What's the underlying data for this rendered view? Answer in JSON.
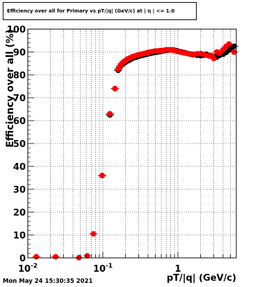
{
  "timestamp": "Mon May 24 15:30:35 2021",
  "chart_data": {
    "type": "scatter",
    "title": "Efficiency over all for Primary vs pT/|q| (GeV/c) at | η | <= 1.0",
    "xlabel": "pT/|q| (GeV/c)",
    "ylabel": "Efficiency over all (%)",
    "x_scale": "log",
    "xlim": [
      0.01,
      6.0
    ],
    "ylim": [
      0,
      100
    ],
    "x_ticks": [
      {
        "value": 0.01,
        "label": "10",
        "exp": "-2"
      },
      {
        "value": 0.1,
        "label": "10",
        "exp": "-1"
      },
      {
        "value": 1,
        "label": "1",
        "exp": ""
      }
    ],
    "y_ticks": [
      {
        "value": 0,
        "label": "0"
      },
      {
        "value": 10,
        "label": "10"
      },
      {
        "value": 20,
        "label": "20"
      },
      {
        "value": 30,
        "label": "30"
      },
      {
        "value": 40,
        "label": "40"
      },
      {
        "value": 50,
        "label": "50"
      },
      {
        "value": 60,
        "label": "60"
      },
      {
        "value": 70,
        "label": "70"
      },
      {
        "value": 80,
        "label": "80"
      },
      {
        "value": 90,
        "label": "90"
      },
      {
        "value": 100,
        "label": "100"
      }
    ],
    "grid": true,
    "series": [
      {
        "color": "#000000",
        "points": [
          [
            0.098,
            36
          ],
          [
            0.124,
            62.5
          ],
          [
            0.145,
            74
          ],
          [
            0.16,
            82
          ],
          [
            0.17,
            83.5
          ],
          [
            0.18,
            84.5
          ],
          [
            0.19,
            85
          ],
          [
            0.2,
            85.5
          ],
          [
            0.21,
            86
          ],
          [
            0.22,
            86.3
          ],
          [
            0.23,
            86.6
          ],
          [
            0.24,
            87
          ],
          [
            0.25,
            87.3
          ],
          [
            0.26,
            87.5
          ],
          [
            0.28,
            87.8
          ],
          [
            0.3,
            88.1
          ],
          [
            0.32,
            88.4
          ],
          [
            0.34,
            88.6
          ],
          [
            0.36,
            88.8
          ],
          [
            0.38,
            89
          ],
          [
            0.4,
            89.2
          ],
          [
            0.43,
            89.4
          ],
          [
            0.46,
            89.6
          ],
          [
            0.5,
            89.8
          ],
          [
            0.54,
            90
          ],
          [
            0.58,
            90.2
          ],
          [
            0.62,
            90.4
          ],
          [
            0.66,
            90.6
          ],
          [
            0.7,
            90.7
          ],
          [
            0.75,
            90.8
          ],
          [
            0.8,
            90.9
          ],
          [
            0.85,
            90.9
          ],
          [
            0.9,
            90.8
          ],
          [
            0.95,
            90.6
          ],
          [
            1.0,
            90.4
          ],
          [
            1.1,
            90.1
          ],
          [
            1.2,
            89.8
          ],
          [
            1.3,
            89.5
          ],
          [
            1.4,
            89.2
          ],
          [
            1.5,
            89
          ],
          [
            1.6,
            88.8
          ],
          [
            1.8,
            88.6
          ],
          [
            2.0,
            88.4
          ],
          [
            2.2,
            88.6
          ],
          [
            2.4,
            89
          ],
          [
            2.6,
            88.5
          ],
          [
            2.8,
            88.2
          ],
          [
            3.0,
            88
          ],
          [
            3.3,
            87.8
          ],
          [
            3.6,
            88.5
          ],
          [
            4.0,
            89
          ],
          [
            4.4,
            89.8
          ],
          [
            4.8,
            91
          ],
          [
            5.2,
            92
          ],
          [
            5.6,
            92.5
          ]
        ]
      },
      {
        "color": "#ff0000",
        "points": [
          [
            0.013,
            0.5
          ],
          [
            0.0235,
            0.5
          ],
          [
            0.048,
            0.1
          ],
          [
            0.062,
            0.9
          ],
          [
            0.075,
            10.5
          ],
          [
            0.098,
            36
          ],
          [
            0.124,
            63
          ],
          [
            0.145,
            74
          ],
          [
            0.16,
            82.5
          ],
          [
            0.17,
            84
          ],
          [
            0.18,
            85
          ],
          [
            0.19,
            85.8
          ],
          [
            0.2,
            86.3
          ],
          [
            0.21,
            86.8
          ],
          [
            0.22,
            87.1
          ],
          [
            0.23,
            87.4
          ],
          [
            0.24,
            87.7
          ],
          [
            0.25,
            88
          ],
          [
            0.26,
            88.2
          ],
          [
            0.28,
            88.5
          ],
          [
            0.3,
            88.8
          ],
          [
            0.32,
            89
          ],
          [
            0.34,
            89.2
          ],
          [
            0.36,
            89.4
          ],
          [
            0.38,
            89.6
          ],
          [
            0.4,
            89.8
          ],
          [
            0.43,
            90
          ],
          [
            0.46,
            90.2
          ],
          [
            0.5,
            90.4
          ],
          [
            0.54,
            90.5
          ],
          [
            0.58,
            90.6
          ],
          [
            0.62,
            90.7
          ],
          [
            0.66,
            90.8
          ],
          [
            0.7,
            91
          ],
          [
            0.75,
            91
          ],
          [
            0.8,
            90.9
          ],
          [
            0.85,
            90.8
          ],
          [
            0.9,
            90.6
          ],
          [
            0.95,
            90.4
          ],
          [
            1.0,
            90.2
          ],
          [
            1.1,
            89.9
          ],
          [
            1.2,
            89.6
          ],
          [
            1.3,
            89.4
          ],
          [
            1.4,
            89.2
          ],
          [
            1.5,
            89.1
          ],
          [
            1.6,
            89
          ],
          [
            1.8,
            89.2
          ],
          [
            2.0,
            89.3
          ],
          [
            2.2,
            89
          ],
          [
            2.4,
            88.6
          ],
          [
            2.6,
            88.3
          ],
          [
            2.8,
            88.5
          ],
          [
            3.0,
            87.2
          ],
          [
            3.3,
            90
          ],
          [
            3.6,
            89.5
          ],
          [
            4.0,
            91
          ],
          [
            4.4,
            92.5
          ],
          [
            4.8,
            93.5
          ],
          [
            5.6,
            90
          ]
        ]
      }
    ]
  }
}
